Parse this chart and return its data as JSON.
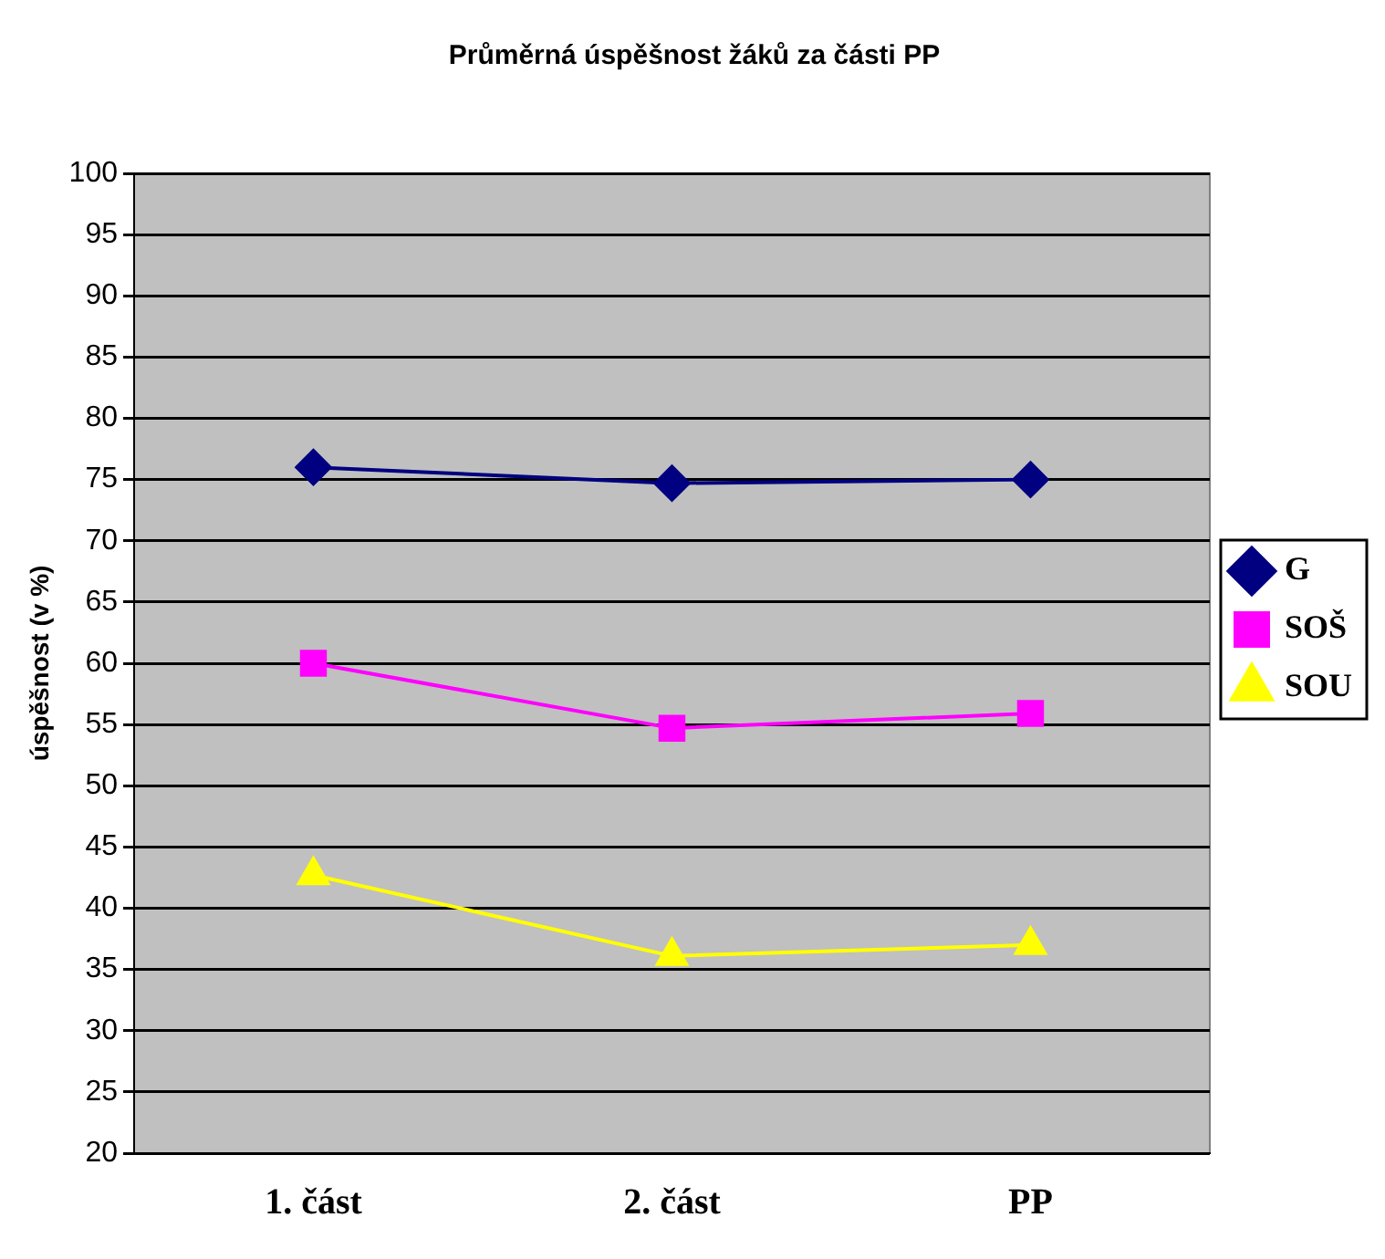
{
  "chart_data": {
    "type": "line",
    "title": "Průměrná úspěšnost žáků za části PP",
    "ylabel": "úspěšnost (v %)",
    "categories": [
      "1. část",
      "2. část",
      "PP"
    ],
    "series": [
      {
        "name": "G",
        "color": "#000080",
        "marker": "diamond",
        "values": [
          76,
          74.7,
          75
        ]
      },
      {
        "name": "SOŠ",
        "color": "#ff00ff",
        "marker": "square",
        "values": [
          60,
          54.7,
          55.9
        ]
      },
      {
        "name": "SOU",
        "color": "#ffff00",
        "marker": "triangle",
        "values": [
          42.7,
          36.1,
          37
        ]
      }
    ],
    "ylim": [
      20,
      100
    ],
    "yticks": [
      20,
      25,
      30,
      35,
      40,
      45,
      50,
      55,
      60,
      65,
      70,
      75,
      80,
      85,
      90,
      95,
      100
    ],
    "grid": "y",
    "legend": "right",
    "line_style": "solid"
  }
}
